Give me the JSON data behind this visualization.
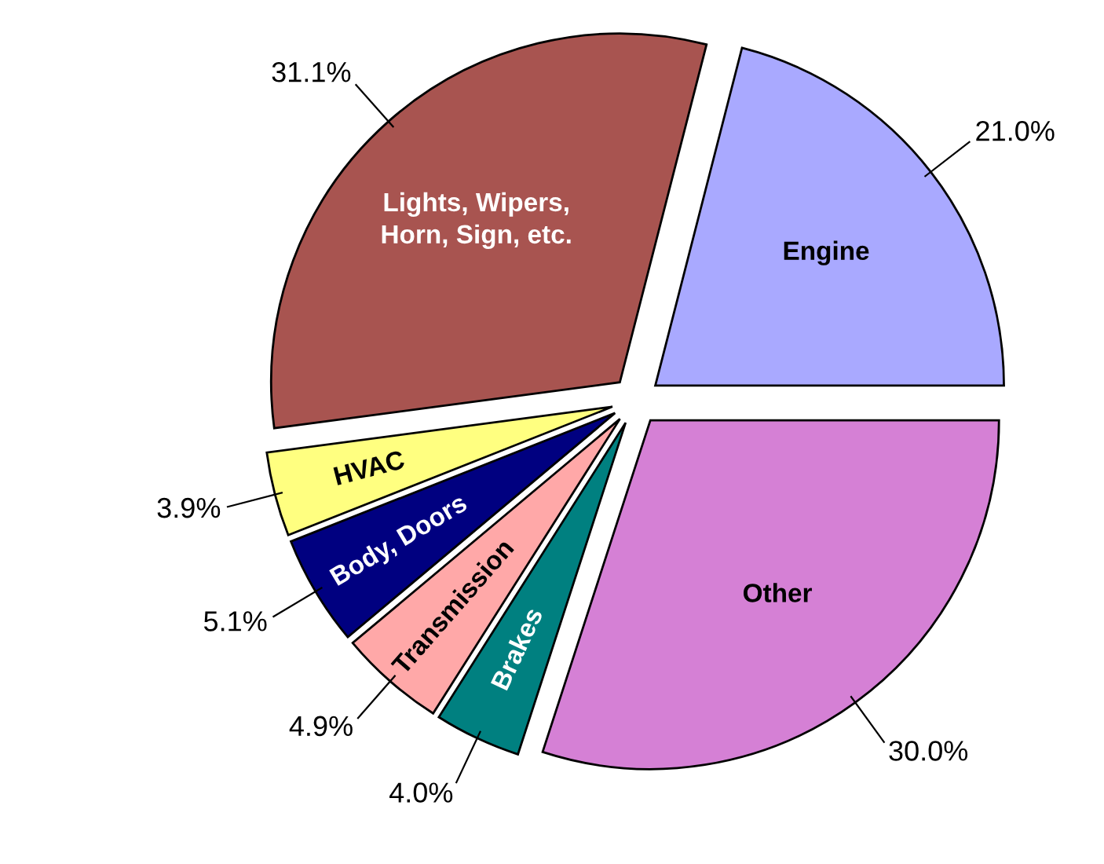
{
  "chart_data": {
    "type": "pie",
    "categories": [
      "Engine",
      "Lights, Wipers,\nHorn, Sign, etc.",
      "HVAC",
      "Body, Doors",
      "Transmission",
      "Brakes",
      "Other"
    ],
    "values": [
      21.0,
      31.1,
      3.9,
      5.1,
      4.9,
      4.0,
      30.0
    ],
    "value_labels": [
      "21.0%",
      "31.1%",
      "3.9%",
      "5.1%",
      "4.9%",
      "4.0%",
      "30.0%"
    ],
    "colors": [
      "#a9a9ff",
      "#a85450",
      "#ffff80",
      "#000080",
      "#ffa8a8",
      "#008080",
      "#d580d5"
    ]
  }
}
